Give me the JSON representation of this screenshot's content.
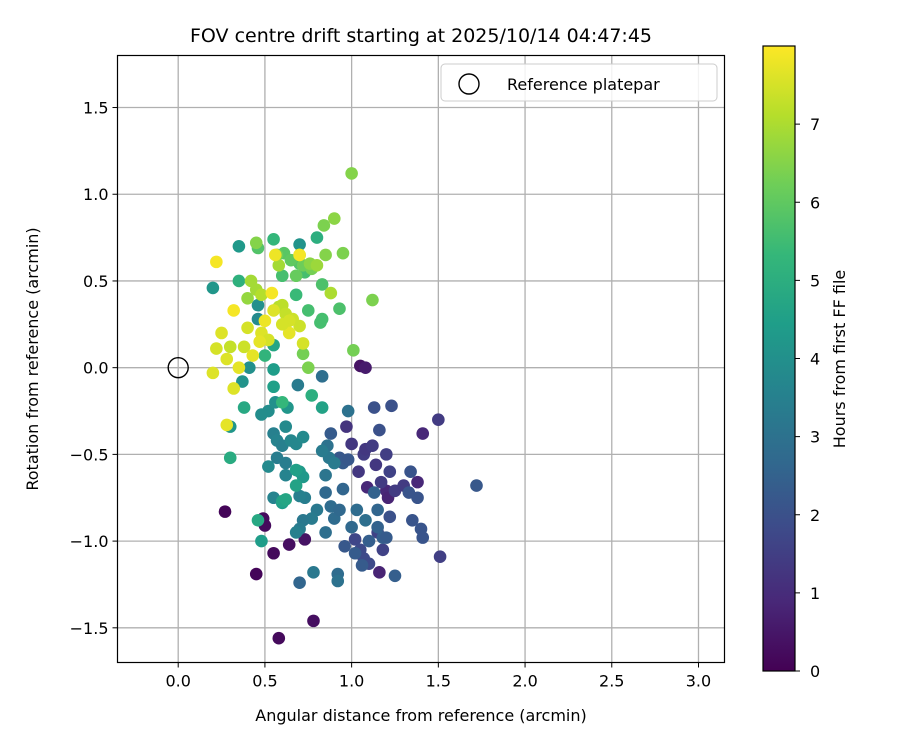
{
  "chart_data": {
    "type": "scatter",
    "title": "FOV centre drift starting at 2025/10/14 04:47:45",
    "xlabel": "Angular distance from reference (arcmin)",
    "ylabel": "Rotation from reference (arcmin)",
    "xlim": [
      -0.35,
      3.15
    ],
    "ylim": [
      -1.7,
      1.8
    ],
    "xticks": [
      0.0,
      0.5,
      1.0,
      1.5,
      2.0,
      2.5,
      3.0
    ],
    "xtick_labels": [
      "0.0",
      "0.5",
      "1.0",
      "1.5",
      "2.0",
      "2.5",
      "3.0"
    ],
    "yticks": [
      -1.5,
      -1.0,
      -0.5,
      0.0,
      0.5,
      1.0,
      1.5
    ],
    "ytick_labels": [
      "−1.5",
      "−1.0",
      "−0.5",
      "0.0",
      "0.5",
      "1.0",
      "1.5"
    ],
    "grid": true,
    "legend": {
      "position": "top-right",
      "entries": [
        {
          "label": "Reference platepar",
          "marker": "hollow-circle"
        }
      ]
    },
    "reference_point": {
      "x": 0.0,
      "y": 0.0
    },
    "colorbar": {
      "label": "Hours from first FF file",
      "min": 0,
      "max": 8,
      "ticks": [
        0,
        1,
        2,
        3,
        4,
        5,
        6,
        7
      ],
      "tick_labels": [
        "0",
        "1",
        "2",
        "3",
        "4",
        "5",
        "6",
        "7"
      ],
      "colormap": [
        "#440154",
        "#482878",
        "#3e4989",
        "#31688e",
        "#26828e",
        "#1f9e89",
        "#35b779",
        "#6ece58",
        "#b5de2b",
        "#fde725"
      ]
    },
    "points": [
      [
        0.27,
        -0.83,
        0.1
      ],
      [
        0.45,
        -1.19,
        0.1
      ],
      [
        0.49,
        -0.87,
        0.2
      ],
      [
        0.5,
        -0.91,
        0.2
      ],
      [
        0.55,
        -1.07,
        0.2
      ],
      [
        0.58,
        -1.56,
        0.2
      ],
      [
        0.64,
        -1.02,
        0.3
      ],
      [
        0.73,
        -0.99,
        0.4
      ],
      [
        0.78,
        -1.46,
        0.3
      ],
      [
        1.05,
        0.01,
        0.4
      ],
      [
        1.08,
        0.0,
        0.6
      ],
      [
        1.09,
        -0.69,
        0.9
      ],
      [
        1.16,
        -1.18,
        0.8
      ],
      [
        1.2,
        -0.71,
        0.9
      ],
      [
        1.21,
        -0.75,
        0.8
      ],
      [
        1.38,
        -0.66,
        0.9
      ],
      [
        1.41,
        -0.38,
        0.9
      ],
      [
        0.97,
        -0.34,
        1.2
      ],
      [
        1.0,
        -0.44,
        1.3
      ],
      [
        1.04,
        -0.6,
        1.3
      ],
      [
        1.07,
        -0.5,
        1.4
      ],
      [
        1.08,
        -0.47,
        1.3
      ],
      [
        1.12,
        -0.45,
        1.4
      ],
      [
        1.14,
        -0.56,
        1.3
      ],
      [
        1.17,
        -0.66,
        1.4
      ],
      [
        1.2,
        -0.5,
        1.5
      ],
      [
        1.25,
        -0.71,
        1.4
      ],
      [
        1.3,
        -0.68,
        1.4
      ],
      [
        1.5,
        -0.3,
        1.4
      ],
      [
        1.51,
        -1.09,
        1.5
      ],
      [
        1.15,
        -0.95,
        1.6
      ],
      [
        1.18,
        -1.05,
        1.6
      ],
      [
        1.22,
        -0.6,
        1.6
      ],
      [
        1.02,
        -0.99,
        1.7
      ],
      [
        1.05,
        -1.05,
        1.8
      ],
      [
        1.07,
        -1.1,
        1.8
      ],
      [
        1.1,
        -1.13,
        1.8
      ],
      [
        1.13,
        -0.23,
        2.0
      ],
      [
        1.23,
        -0.22,
        2.0
      ],
      [
        1.22,
        -0.86,
        2.0
      ],
      [
        1.16,
        -0.36,
        2.0
      ],
      [
        1.34,
        -0.6,
        2.1
      ],
      [
        1.38,
        -0.75,
        2.1
      ],
      [
        1.33,
        -0.72,
        2.1
      ],
      [
        1.4,
        -0.93,
        2.1
      ],
      [
        1.41,
        -0.98,
        2.1
      ],
      [
        1.35,
        -0.88,
        2.1
      ],
      [
        1.72,
        -0.68,
        2.2
      ],
      [
        0.88,
        -0.38,
        2.3
      ],
      [
        0.93,
        -0.52,
        2.2
      ],
      [
        0.95,
        -0.55,
        2.3
      ],
      [
        0.98,
        -0.53,
        2.2
      ],
      [
        0.96,
        -1.03,
        2.2
      ],
      [
        1.02,
        -1.07,
        2.3
      ],
      [
        1.06,
        -1.14,
        2.3
      ],
      [
        1.1,
        -1.0,
        2.4
      ],
      [
        1.25,
        -1.2,
        2.4
      ],
      [
        1.18,
        -0.98,
        2.4
      ],
      [
        1.2,
        -0.98,
        2.3
      ],
      [
        1.15,
        -0.92,
        2.5
      ],
      [
        1.13,
        -0.72,
        2.5
      ],
      [
        1.15,
        -0.82,
        2.6
      ],
      [
        0.7,
        -1.24,
        2.6
      ],
      [
        0.95,
        -0.7,
        2.6
      ],
      [
        0.85,
        -0.72,
        2.7
      ],
      [
        0.88,
        -0.8,
        2.8
      ],
      [
        0.9,
        -0.87,
        2.8
      ],
      [
        0.93,
        -0.82,
        2.7
      ],
      [
        0.85,
        -0.95,
        2.9
      ],
      [
        0.92,
        -1.19,
        2.8
      ],
      [
        0.92,
        -1.23,
        3.0
      ],
      [
        1.03,
        -0.82,
        2.8
      ],
      [
        1.0,
        -0.92,
        2.7
      ],
      [
        1.08,
        -0.88,
        2.9
      ],
      [
        0.83,
        -0.05,
        2.9
      ],
      [
        0.98,
        -0.25,
        3.0
      ],
      [
        0.86,
        -0.45,
        3.0
      ],
      [
        0.87,
        -0.52,
        3.2
      ],
      [
        0.9,
        -0.55,
        3.3
      ],
      [
        0.83,
        -0.48,
        3.3
      ],
      [
        0.85,
        -0.62,
        3.1
      ],
      [
        0.8,
        -0.82,
        3.2
      ],
      [
        0.77,
        -0.87,
        3.3
      ],
      [
        0.72,
        -0.88,
        3.2
      ],
      [
        0.7,
        -0.93,
        3.3
      ],
      [
        0.73,
        -0.75,
        3.4
      ],
      [
        0.7,
        -0.74,
        3.5
      ],
      [
        0.78,
        -1.18,
        3.2
      ],
      [
        0.68,
        -0.95,
        3.5
      ],
      [
        0.69,
        -0.1,
        3.3
      ],
      [
        0.55,
        -0.38,
        3.5
      ],
      [
        0.57,
        -0.42,
        3.6
      ],
      [
        0.6,
        -0.45,
        3.5
      ],
      [
        0.62,
        -0.55,
        3.4
      ],
      [
        0.57,
        -0.52,
        3.4
      ],
      [
        0.55,
        -0.75,
        3.6
      ],
      [
        0.62,
        -0.62,
        3.6
      ],
      [
        0.65,
        -0.42,
        3.7
      ],
      [
        0.68,
        -0.44,
        3.7
      ],
      [
        0.72,
        -0.4,
        3.8
      ],
      [
        0.52,
        -0.57,
        3.8
      ],
      [
        0.52,
        -0.25,
        3.9
      ],
      [
        0.48,
        -0.27,
        3.9
      ],
      [
        0.62,
        -0.34,
        3.8
      ],
      [
        0.56,
        -0.2,
        4.0
      ],
      [
        0.46,
        0.28,
        3.8
      ],
      [
        0.41,
        0.0,
        4.0
      ],
      [
        0.37,
        -0.08,
        4.1
      ],
      [
        0.46,
        0.36,
        4.0
      ],
      [
        0.7,
        0.71,
        4.1
      ],
      [
        0.63,
        -0.23,
        4.2
      ],
      [
        0.72,
        -0.63,
        4.3
      ],
      [
        0.7,
        -0.6,
        4.3
      ],
      [
        0.6,
        -0.78,
        4.4
      ],
      [
        0.48,
        -1.0,
        4.4
      ],
      [
        0.35,
        0.7,
        4.3
      ],
      [
        0.2,
        0.46,
        4.2
      ],
      [
        0.3,
        -0.34,
        4.2
      ],
      [
        0.55,
        -0.01,
        4.4
      ],
      [
        0.55,
        -0.11,
        4.5
      ],
      [
        0.68,
        -0.59,
        4.5
      ],
      [
        0.68,
        -0.68,
        4.6
      ],
      [
        0.6,
        -0.77,
        4.6
      ],
      [
        0.62,
        -0.76,
        4.7
      ],
      [
        0.83,
        -0.23,
        4.6
      ],
      [
        0.46,
        -0.88,
        4.8
      ],
      [
        0.38,
        -0.23,
        4.8
      ],
      [
        0.3,
        -0.52,
        4.9
      ],
      [
        0.55,
        0.13,
        4.7
      ],
      [
        0.77,
        -0.16,
        5.0
      ],
      [
        0.8,
        0.75,
        5.0
      ],
      [
        0.35,
        0.5,
        5.1
      ],
      [
        0.5,
        0.07,
        5.2
      ],
      [
        0.6,
        -0.2,
        5.3
      ],
      [
        0.55,
        0.74,
        5.3
      ],
      [
        0.73,
        0.55,
        5.6
      ],
      [
        0.68,
        0.42,
        5.4
      ],
      [
        0.83,
        0.48,
        5.7
      ],
      [
        0.82,
        0.26,
        5.6
      ],
      [
        0.83,
        0.28,
        5.6
      ],
      [
        0.75,
        0.33,
        5.6
      ],
      [
        0.93,
        0.34,
        5.7
      ],
      [
        0.7,
        0.6,
        5.8
      ],
      [
        0.6,
        0.53,
        5.6
      ],
      [
        0.46,
        0.69,
        5.8
      ],
      [
        0.61,
        0.66,
        5.9
      ],
      [
        0.65,
        0.62,
        6.0
      ],
      [
        0.57,
        0.65,
        6.2
      ],
      [
        0.68,
        0.53,
        6.1
      ],
      [
        0.72,
        0.59,
        6.2
      ],
      [
        0.77,
        0.57,
        6.3
      ],
      [
        0.84,
        0.82,
        6.4
      ],
      [
        0.85,
        0.65,
        6.5
      ],
      [
        0.95,
        0.66,
        6.4
      ],
      [
        0.72,
        0.08,
        6.3
      ],
      [
        0.75,
        0.0,
        6.4
      ],
      [
        1.01,
        0.1,
        6.3
      ],
      [
        1.12,
        0.39,
        6.4
      ],
      [
        0.45,
        0.72,
        6.5
      ],
      [
        1.0,
        1.12,
        6.5
      ],
      [
        0.9,
        0.86,
        6.6
      ],
      [
        0.76,
        0.6,
        6.6
      ],
      [
        0.8,
        0.59,
        6.8
      ],
      [
        0.7,
        0.65,
        6.9
      ],
      [
        0.42,
        0.5,
        6.9
      ],
      [
        0.58,
        0.59,
        6.9
      ],
      [
        0.88,
        0.43,
        7.0
      ],
      [
        0.4,
        0.4,
        6.7
      ],
      [
        0.45,
        0.45,
        6.9
      ],
      [
        0.48,
        0.42,
        7.1
      ],
      [
        0.58,
        0.35,
        7.1
      ],
      [
        0.6,
        0.36,
        7.2
      ],
      [
        0.62,
        0.31,
        7.3
      ],
      [
        0.66,
        0.28,
        7.4
      ],
      [
        0.7,
        0.24,
        7.4
      ],
      [
        0.72,
        0.14,
        7.5
      ],
      [
        0.64,
        0.27,
        7.5
      ],
      [
        0.55,
        0.33,
        7.6
      ],
      [
        0.48,
        0.2,
        7.6
      ],
      [
        0.52,
        0.16,
        7.5
      ],
      [
        0.4,
        0.23,
        7.5
      ],
      [
        0.38,
        0.12,
        7.4
      ],
      [
        0.3,
        0.12,
        7.3
      ],
      [
        0.25,
        0.2,
        7.6
      ],
      [
        0.28,
        0.05,
        7.6
      ],
      [
        0.22,
        0.11,
        7.5
      ],
      [
        0.2,
        -0.03,
        7.6
      ],
      [
        0.32,
        -0.12,
        7.6
      ],
      [
        0.28,
        -0.33,
        7.7
      ],
      [
        0.35,
        0.0,
        7.7
      ],
      [
        0.43,
        0.07,
        7.7
      ],
      [
        0.47,
        0.15,
        7.7
      ],
      [
        0.32,
        0.33,
        7.9
      ],
      [
        0.5,
        0.27,
        7.8
      ],
      [
        0.54,
        0.43,
        7.9
      ],
      [
        0.22,
        0.61,
        7.9
      ],
      [
        0.7,
        0.65,
        7.9
      ],
      [
        0.64,
        0.2,
        7.7
      ],
      [
        0.56,
        0.65,
        7.8
      ],
      [
        0.6,
        0.25,
        7.5
      ]
    ]
  }
}
